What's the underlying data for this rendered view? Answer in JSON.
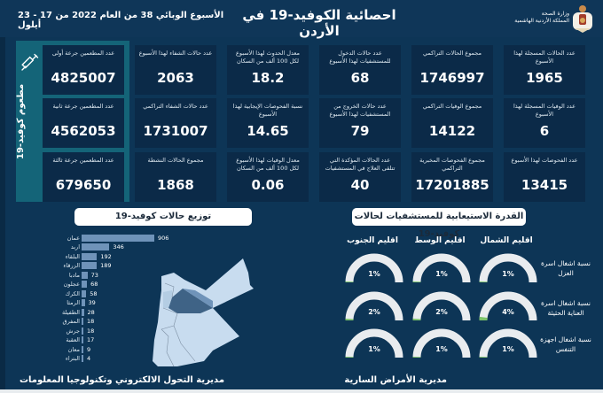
{
  "header": {
    "title": "احصائية الكوفيد-19 في الأردن",
    "week_text": "الأسبوع الوبائي  38 من العام 2022 من  17 - 23 أيلول",
    "ministry_line1": "وزارة الصحة",
    "ministry_line2": "المملكة الأردنية الهاشمية",
    "emblem_icon": "jordan-coat-of-arms"
  },
  "vaccine_panel": {
    "label": "مطعوم كوفيد-19",
    "icon": "syringe-icon",
    "cards": [
      {
        "label": "عدد المطعمين جرعة أولى",
        "value": "4825007"
      },
      {
        "label": "عدد المطعمين جرعة ثانية",
        "value": "4562053"
      },
      {
        "label": "عدد المطعمين جرعة ثالثة",
        "value": "679650"
      }
    ]
  },
  "stats": {
    "col1": [
      {
        "label": "عدد الحالات المسجلة لهذا الأسبوع",
        "value": "1965"
      },
      {
        "label": "عدد الوفيات المسجلة لهذا الأسبوع",
        "value": "6"
      },
      {
        "label": "عدد الفحوصات لهذا الأسبوع",
        "value": "13415"
      }
    ],
    "col2": [
      {
        "label": "مجموع الحالات التراكمي",
        "value": "1746997"
      },
      {
        "label": "مجموع الوفيات التراكمي",
        "value": "14122"
      },
      {
        "label": "مجموع الفحوصات المخبرية التراكمي",
        "value": "17201885"
      }
    ],
    "col3": [
      {
        "label": "عدد حالات الدخول للمستشفيات لهذا الأسبوع",
        "value": "68"
      },
      {
        "label": "عدد حالات الخروج من المستشفيات لهذا الأسبوع",
        "value": "79"
      },
      {
        "label": "عدد الحالات المؤكدة التي تتلقى العلاج في المستشفيات",
        "value": "40"
      }
    ],
    "col4": [
      {
        "label": "معدل الحدوث لهذا الأسبوع لكل 100 ألف من السكان",
        "value": "18.2"
      },
      {
        "label": "نسبة الفحوصات الإيجابية لهذا الأسبوع",
        "value": "14.65"
      },
      {
        "label": "معدل الوفيات لهذا الأسبوع لكل 100 ألف من السكان",
        "value": "0.06"
      }
    ],
    "col5": [
      {
        "label": "عدد حالات الشفاء لهذا الأسبوع",
        "value": "2063"
      },
      {
        "label": "عدد حالات الشفاء التراكمي",
        "value": "1731007"
      },
      {
        "label": "مجموع الحالات النشطة",
        "value": "1868"
      }
    ]
  },
  "distribution": {
    "title": "توزيع حالات كوفيد-19",
    "map_icon": "jordan-map"
  },
  "chart_data": {
    "type": "bar",
    "title": "توزيع حالات كوفيد-19",
    "orientation": "horizontal",
    "categories": [
      "عمان",
      "اربد",
      "البلقاء",
      "الزرقاء",
      "مادبا",
      "عجلون",
      "الكرك",
      "الرمثا",
      "الطفيلة",
      "المفرق",
      "جرش",
      "العقبة",
      "معان",
      "البتراء"
    ],
    "values": [
      906,
      346,
      192,
      189,
      73,
      68,
      58,
      39,
      28,
      18,
      18,
      17,
      9,
      4
    ],
    "xlabel": "",
    "ylabel": "",
    "grid": false,
    "color": "#6f93b9"
  },
  "hospital": {
    "title": "القدرة الاستيعابية للمستشفيات لحالات كوفيد-19",
    "regions": [
      "اقليم الشمال",
      "اقليم الوسط",
      "اقليم الجنوب"
    ],
    "rows": [
      {
        "label": "نسبة اشغال اسرة العزل",
        "values": [
          "1%",
          "1%",
          "1%"
        ],
        "pct": [
          1,
          1,
          1
        ]
      },
      {
        "label": "نسبة اشغال اسرة العناية الحثيثة",
        "values": [
          "4%",
          "2%",
          "2%"
        ],
        "pct": [
          4,
          2,
          2
        ]
      },
      {
        "label": "نسبة اشغال اجهزة التنفس",
        "values": [
          "1%",
          "1%",
          "1%"
        ],
        "pct": [
          1,
          1,
          1
        ]
      }
    ]
  },
  "footer": {
    "left": "مديرية التحول الالكتروني وتكنولوجيا المعلومات",
    "right": "مديرية الأمراض السارية"
  },
  "colors": {
    "background": "#0d3556",
    "card": "#0b2a48",
    "vaccine_panel": "#146478",
    "bar": "#6f93b9",
    "gauge_track": "#e9ecef",
    "gauge_fill": "#7cc36a"
  }
}
